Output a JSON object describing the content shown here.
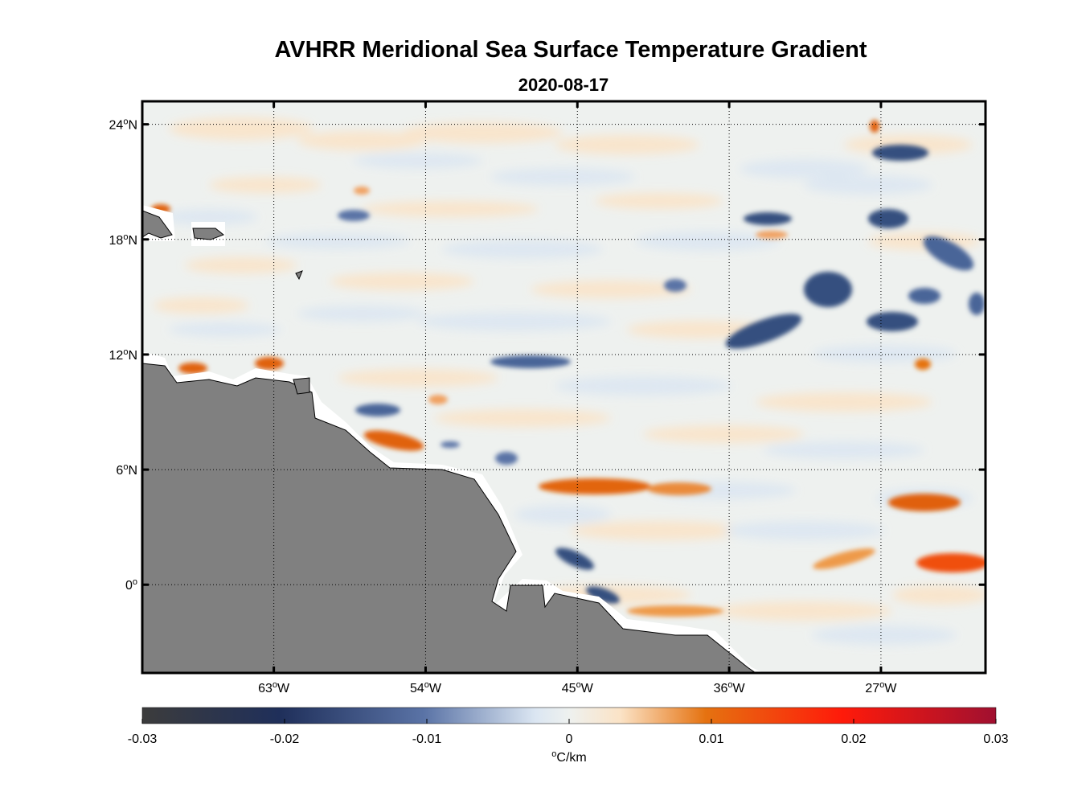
{
  "title": "AVHRR Meridional Sea Surface Temperature Gradient",
  "subtitle": "2020-08-17",
  "map": {
    "lon_range": [
      -70.8,
      -20.8
    ],
    "lat_range": [
      -4.6,
      25.2
    ],
    "lon_ticks": [
      {
        "value": -63,
        "label": "63",
        "suffix": "W"
      },
      {
        "value": -54,
        "label": "54",
        "suffix": "W"
      },
      {
        "value": -45,
        "label": "45",
        "suffix": "W"
      },
      {
        "value": -36,
        "label": "36",
        "suffix": "W"
      },
      {
        "value": -27,
        "label": "27",
        "suffix": "W"
      }
    ],
    "lat_ticks": [
      {
        "value": 24,
        "label": "24",
        "suffix": "N"
      },
      {
        "value": 18,
        "label": "18",
        "suffix": "N"
      },
      {
        "value": 12,
        "label": "12",
        "suffix": "N"
      },
      {
        "value": 6,
        "label": "6",
        "suffix": "N"
      },
      {
        "value": 0,
        "label": "0",
        "suffix": ""
      }
    ],
    "grid": true,
    "land_color": "#808080"
  },
  "colorbar": {
    "min": -0.03,
    "max": 0.03,
    "ticks": [
      "-0.03",
      "-0.02",
      "-0.01",
      "0",
      "0.01",
      "0.02",
      "0.03"
    ],
    "units": "C/km",
    "colors": [
      "#3c3c3c",
      "#1f2f5a",
      "#5a73a6",
      "#dbe6f2",
      "#eef1ef",
      "#fbe3c6",
      "#e57210",
      "#ff1a0a",
      "#a01030"
    ]
  }
}
